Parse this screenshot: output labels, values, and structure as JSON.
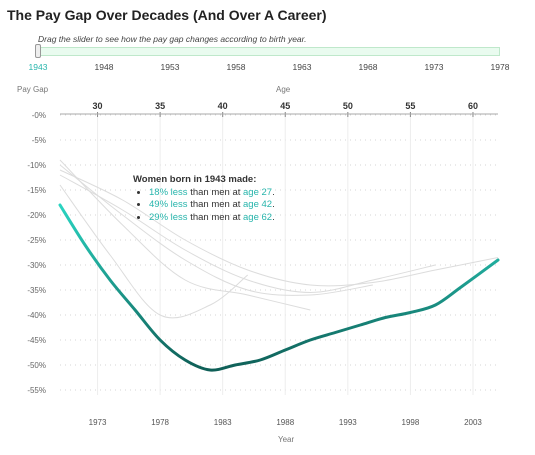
{
  "title": "The Pay Gap Over Decades (And Over A Career)",
  "slider": {
    "instruction": "Drag the slider to see how the pay gap changes according to birth year.",
    "ticks": [
      "1943",
      "1948",
      "1953",
      "1958",
      "1963",
      "1968",
      "1973",
      "1978"
    ],
    "selected": "1943",
    "range": [
      1943,
      1978
    ],
    "value": 1943
  },
  "axes": {
    "y_title": "Pay Gap",
    "top_x_title": "Age",
    "bottom_x_title": "Year"
  },
  "annotation": {
    "heading": "Women born in 1943 made:",
    "items": [
      {
        "pct": "18% less",
        "mid": " than men at ",
        "age": "age 27"
      },
      {
        "pct": "49% less",
        "mid": " than men at ",
        "age": "age 42"
      },
      {
        "pct": "29% less",
        "mid": " than men at ",
        "age": "age 62"
      }
    ]
  },
  "colors": {
    "accent": "#2ad4c1",
    "accent_dark": "#0f5f57",
    "ghost": "#dcdcdc",
    "slider_fill": "#e9fbef"
  },
  "chart_data": {
    "type": "line",
    "xlabel": "Year",
    "ylabel": "Pay Gap",
    "top_xlabel": "Age",
    "x_ticks": [
      1973,
      1978,
      1983,
      1988,
      1993,
      1998,
      2003
    ],
    "top_x_ticks": [
      30,
      35,
      40,
      45,
      50,
      55,
      60
    ],
    "xlim": [
      1970,
      2005
    ],
    "ylim": [
      -55,
      0
    ],
    "y_ticks": [
      "-0%",
      "-5%",
      "-10%",
      "-15%",
      "-20%",
      "-25%",
      "-30%",
      "-35%",
      "-40%",
      "-45%",
      "-50%",
      "-55%"
    ],
    "y_tick_values": [
      0,
      -5,
      -10,
      -15,
      -20,
      -25,
      -30,
      -35,
      -40,
      -45,
      -50,
      -55
    ],
    "grid": true,
    "series": [
      {
        "x": [
          1970,
          1972,
          1974,
          1976,
          1978,
          1980,
          1982,
          1984,
          1986,
          1988,
          1990,
          1992,
          1994,
          1996,
          1998,
          2000,
          2002,
          2005
        ],
        "values": [
          -18,
          -26,
          -33,
          -39,
          -45,
          -49,
          -51,
          -50,
          -49,
          -47,
          -45,
          -43.5,
          -42,
          -40.5,
          -39.5,
          -38,
          -34.5,
          -29
        ]
      }
    ],
    "ghost_series": [
      {
        "x": [
          1970,
          1975,
          1980,
          1985,
          1990,
          1995,
          2000,
          2005
        ],
        "values": [
          -11,
          -17,
          -25,
          -31,
          -34,
          -33.5,
          -31,
          -28.5
        ]
      },
      {
        "x": [
          1970,
          1975,
          1980,
          1985,
          1990,
          1995,
          2000
        ],
        "values": [
          -12,
          -19,
          -27,
          -33,
          -35.5,
          -33,
          -30
        ]
      },
      {
        "x": [
          1970,
          1975,
          1980,
          1985,
          1990,
          1995
        ],
        "values": [
          -10,
          -20,
          -29,
          -35,
          -36,
          -34
        ]
      },
      {
        "x": [
          1970,
          1975,
          1980,
          1985,
          1990
        ],
        "values": [
          -9,
          -22,
          -33,
          -36,
          -39
        ]
      },
      {
        "x": [
          1970,
          1974,
          1978,
          1982,
          1985
        ],
        "values": [
          -14,
          -28,
          -40,
          -38,
          -32
        ]
      }
    ]
  }
}
